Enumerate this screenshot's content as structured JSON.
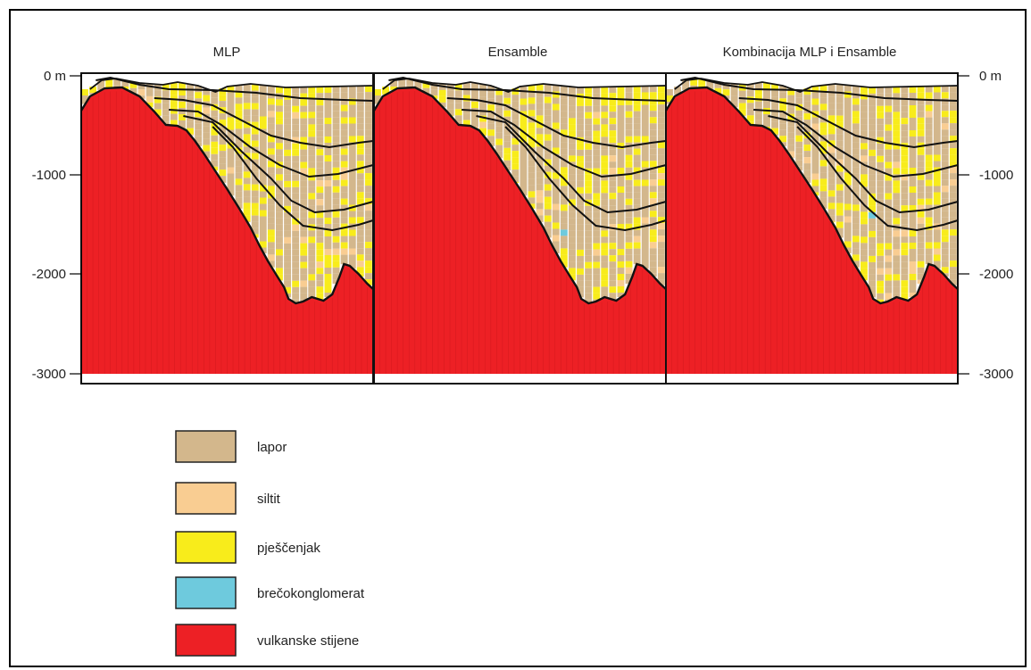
{
  "panels": [
    {
      "title": "MLP"
    },
    {
      "title": "Ensamble"
    },
    {
      "title": "Kombinacija MLP i Ensamble"
    }
  ],
  "axis": {
    "left_ticks": [
      "0 m",
      "-1000",
      "-2000",
      "-3000"
    ],
    "right_ticks": [
      "0 m",
      "-1000",
      "-2000",
      "-3000"
    ]
  },
  "legend": [
    {
      "label": "lapor",
      "color": "#d3b78c"
    },
    {
      "label": "siltit",
      "color": "#f9cd92"
    },
    {
      "label": "pješčenjak",
      "color": "#f8ec1b"
    },
    {
      "label": "brečokonglomerat",
      "color": "#6ecadd"
    },
    {
      "label": "vulkanske stijene",
      "color": "#ed2025"
    }
  ]
}
